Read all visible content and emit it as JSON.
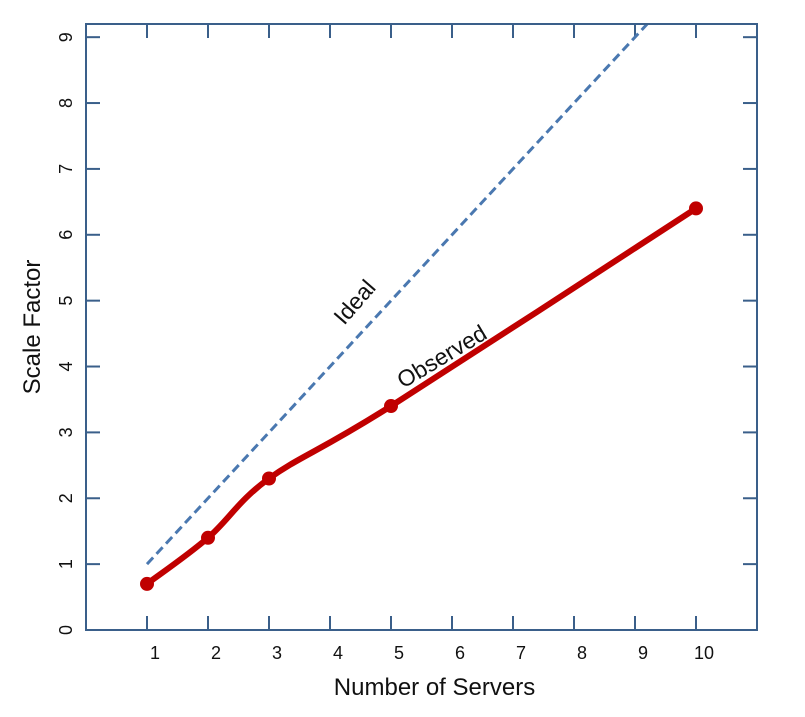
{
  "chart_data": {
    "type": "line",
    "title": "",
    "xlabel": "Number of Servers",
    "ylabel": "Scale Factor",
    "xlim": [
      0,
      11
    ],
    "ylim": [
      0,
      9.2
    ],
    "xticks": [
      1,
      2,
      3,
      4,
      5,
      6,
      7,
      8,
      9,
      10
    ],
    "yticks": [
      0,
      1,
      2,
      3,
      4,
      5,
      6,
      7,
      8,
      9
    ],
    "grid": false,
    "series": [
      {
        "name": "Observed",
        "style": "solid",
        "markers": true,
        "color": "#c00000",
        "x": [
          1,
          2,
          3,
          5,
          10
        ],
        "y": [
          0.7,
          1.4,
          2.3,
          3.4,
          6.4
        ]
      },
      {
        "name": "Ideal",
        "style": "dashed",
        "markers": false,
        "color": "#4a78b0",
        "x": [
          1,
          10
        ],
        "y": [
          1,
          10
        ]
      }
    ],
    "annotations": [
      {
        "text": "Ideal",
        "series": "Ideal"
      },
      {
        "text": "Observed",
        "series": "Observed"
      }
    ],
    "colors": {
      "axis": "#3a5f8a"
    }
  }
}
